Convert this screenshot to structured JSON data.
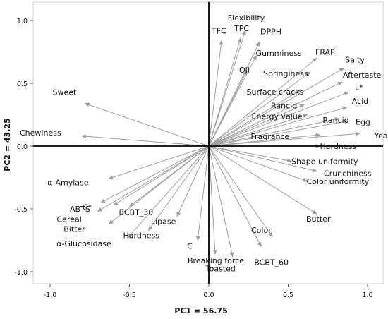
{
  "chart_data": {
    "type": "scatter",
    "subtype": "biplot-loadings",
    "title": "",
    "xlabel": "PC1 = 56.75",
    "ylabel": "PC2 = 43.25",
    "xlim": [
      -1.1,
      1.1
    ],
    "ylim": [
      -1.08,
      1.08
    ],
    "x_ticks": [
      "-1.0",
      "-0.5",
      "0.0",
      "0.5",
      "1.0"
    ],
    "y_ticks": [
      "1.0",
      "0.5",
      "0.0",
      "-0.5",
      "-1.0"
    ],
    "grid": false,
    "arrow_color": "#9e9e9e",
    "axis_line_color": "#000000",
    "loadings": [
      {
        "name": "Flexibility",
        "x": 0.23,
        "y": 0.92
      },
      {
        "name": "TFC",
        "x": 0.08,
        "y": 0.84
      },
      {
        "name": "TPC",
        "x": 0.2,
        "y": 0.86
      },
      {
        "name": "DPPH",
        "x": 0.32,
        "y": 0.83
      },
      {
        "name": "Gumminess",
        "x": 0.3,
        "y": 0.72
      },
      {
        "name": "Oil",
        "x": 0.24,
        "y": 0.6
      },
      {
        "name": "FRAP",
        "x": 0.68,
        "y": 0.7
      },
      {
        "name": "Springiness",
        "x": 0.64,
        "y": 0.59
      },
      {
        "name": "Salty",
        "x": 0.85,
        "y": 0.62
      },
      {
        "name": "Aftertaste",
        "x": 0.84,
        "y": 0.51
      },
      {
        "name": "Surface cracks",
        "x": 0.58,
        "y": 0.45
      },
      {
        "name": "L*",
        "x": 0.88,
        "y": 0.43
      },
      {
        "name": "Rancid",
        "x": 0.6,
        "y": 0.33
      },
      {
        "name": "Acid",
        "x": 0.87,
        "y": 0.31
      },
      {
        "name": "Energy value",
        "x": 0.62,
        "y": 0.25
      },
      {
        "name": "Rancid",
        "x": 0.82,
        "y": 0.22
      },
      {
        "name": "Egg",
        "x": 0.88,
        "y": 0.2
      },
      {
        "name": "Fragrance",
        "x": 0.7,
        "y": 0.09
      },
      {
        "name": "Yeast",
        "x": 0.95,
        "y": 0.1
      },
      {
        "name": "Hardness",
        "x": 0.7,
        "y": 0.0
      },
      {
        "name": "Shape uniformity",
        "x": 0.52,
        "y": -0.12
      },
      {
        "name": "Crunchiness",
        "x": 0.68,
        "y": -0.2
      },
      {
        "name": "Color uniformity",
        "x": 0.62,
        "y": -0.28
      },
      {
        "name": "Butter",
        "x": 0.68,
        "y": -0.54
      },
      {
        "name": "Color",
        "x": 0.4,
        "y": -0.72
      },
      {
        "name": "BCBT_60",
        "x": 0.33,
        "y": -0.8
      },
      {
        "name": "Toasted",
        "x": 0.15,
        "y": -0.88
      },
      {
        "name": "Breaking force",
        "x": 0.04,
        "y": -0.86
      },
      {
        "name": "C",
        "x": -0.07,
        "y": -0.75
      },
      {
        "name": "Lipase",
        "x": -0.2,
        "y": -0.56
      },
      {
        "name": "Hardness",
        "x": -0.38,
        "y": -0.67
      },
      {
        "name": "α-Glucosidase",
        "x": -0.51,
        "y": -0.73
      },
      {
        "name": "BCBT_30",
        "x": -0.5,
        "y": -0.48
      },
      {
        "name": "Bitter",
        "x": -0.63,
        "y": -0.62
      },
      {
        "name": "C*",
        "x": -0.6,
        "y": -0.47
      },
      {
        "name": "ABTS",
        "x": -0.68,
        "y": -0.45
      },
      {
        "name": "Cereal",
        "x": -0.7,
        "y": -0.52
      },
      {
        "name": "α-Amylase",
        "x": -0.63,
        "y": -0.26
      },
      {
        "name": "Chewiness",
        "x": -0.8,
        "y": 0.08
      },
      {
        "name": "Sweet",
        "x": -0.78,
        "y": 0.34
      }
    ]
  }
}
